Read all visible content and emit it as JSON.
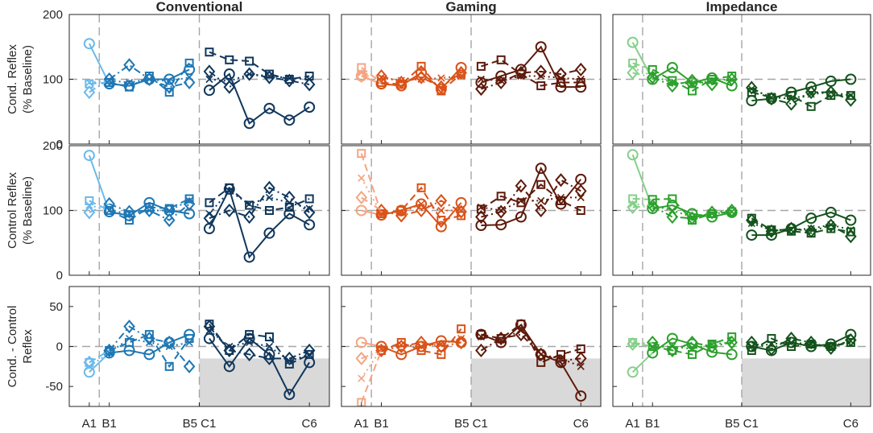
{
  "chart_data": {
    "type": "line",
    "columns": [
      {
        "title": "Conventional",
        "colors": {
          "A": "#6bb9ea",
          "B": "#1f77b4",
          "C": "#10375c"
        }
      },
      {
        "title": "Gaming",
        "colors": {
          "A": "#f4a582",
          "B": "#d95319",
          "C": "#5e1a0b"
        }
      },
      {
        "title": "Impedance",
        "colors": {
          "A": "#86d08a",
          "B": "#2ca02c",
          "C": "#14521c"
        }
      }
    ],
    "x_tick_labels": [
      {
        "label": "A1",
        "x": 1
      },
      {
        "label": "B1",
        "x": 2
      },
      {
        "label": "B5 C1",
        "x": 6.5
      },
      {
        "label": "C6",
        "x": 12
      }
    ],
    "x_range": [
      0,
      13
    ],
    "phase_separators": [
      1.5,
      6.5
    ],
    "rows": [
      {
        "ylabel": [
          "Cond. Reflex",
          "(% Baseline)"
        ],
        "ylim": [
          0,
          200
        ],
        "yticks": [
          0,
          100,
          200
        ],
        "reference": 100,
        "series": [
          [
            {
              "circle": [
                155,
                93,
                90,
                100,
                100,
                115,
                83,
                108,
                32,
                55,
                37,
                57
              ],
              "square": [
                93,
                95,
                88,
                105,
                80,
                125,
                142,
                130,
                128,
                108,
                100,
                105
              ],
              "diamond": [
                80,
                100,
                122,
                100,
                88,
                95,
                112,
                88,
                108,
                103,
                98,
                92
              ],
              "star": [
                95,
                98,
                95,
                100,
                97,
                103,
                100,
                97,
                108,
                105,
                102,
                100
              ]
            },
            {
              "circle": [
                105,
                93,
                90,
                110,
                85,
                118,
                95,
                105,
                115,
                150,
                88,
                88
              ],
              "square": [
                118,
                95,
                92,
                120,
                82,
                108,
                120,
                130,
                108,
                90,
                95,
                95
              ],
              "diamond": [
                105,
                105,
                95,
                103,
                88,
                110,
                85,
                95,
                110,
                112,
                108,
                115
              ],
              "star": [
                110,
                103,
                98,
                100,
                102,
                105,
                100,
                98,
                105,
                105,
                102,
                100
              ]
            },
            {
              "circle": [
                157,
                100,
                118,
                95,
                102,
                90,
                67,
                70,
                80,
                88,
                97,
                100
              ],
              "square": [
                125,
                115,
                98,
                82,
                100,
                105,
                80,
                72,
                75,
                58,
                75,
                75
              ],
              "diamond": [
                110,
                103,
                90,
                98,
                92,
                100,
                87,
                70,
                62,
                80,
                80,
                68
              ],
              "star": [
                118,
                105,
                95,
                93,
                98,
                100,
                85,
                72,
                70,
                77,
                80,
                75
              ]
            }
          ],
          [
            {
              "circle": [
                185,
                98,
                92,
                112,
                100,
                95,
                72,
                133,
                28,
                65,
                95,
                78
              ],
              "square": [
                115,
                100,
                85,
                105,
                103,
                118,
                112,
                135,
                108,
                100,
                105,
                118
              ],
              "diamond": [
                97,
                110,
                98,
                100,
                85,
                110,
                88,
                100,
                90,
                135,
                120,
                97
              ],
              "star": [
                108,
                100,
                95,
                100,
                100,
                115,
                95,
                130,
                110,
                120,
                112,
                103
              ]
            },
            {
              "circle": [
                100,
                93,
                100,
                110,
                75,
                112,
                77,
                78,
                90,
                165,
                110,
                148
              ],
              "square": [
                188,
                95,
                100,
                135,
                85,
                92,
                102,
                122,
                112,
                140,
                115,
                100
              ],
              "diamond": [
                120,
                100,
                92,
                100,
                115,
                98,
                90,
                98,
                138,
                100,
                147,
                130
              ],
              "star": [
                150,
                95,
                97,
                110,
                100,
                100,
                105,
                100,
                115,
                115,
                120,
                120
              ]
            },
            {
              "circle": [
                186,
                103,
                108,
                95,
                90,
                97,
                62,
                62,
                72,
                88,
                97,
                85
              ],
              "square": [
                118,
                117,
                118,
                85,
                95,
                98,
                88,
                70,
                68,
                65,
                72,
                67
              ],
              "diamond": [
                105,
                107,
                90,
                88,
                97,
                100,
                85,
                68,
                72,
                68,
                77,
                60
              ],
              "star": [
                110,
                108,
                100,
                90,
                95,
                98,
                80,
                70,
                70,
                72,
                78,
                70
              ]
            }
          ],
          [
            {
              "circle": [
                -32,
                -8,
                -5,
                -10,
                5,
                15,
                10,
                -25,
                10,
                -10,
                -60,
                -20
              ],
              "square": [
                -20,
                -5,
                5,
                15,
                -25,
                10,
                28,
                -5,
                15,
                12,
                -22,
                -10
              ],
              "diamond": [
                -20,
                -5,
                25,
                10,
                5,
                -25,
                25,
                -5,
                -10,
                -15,
                -15,
                -5
              ],
              "star": [
                -25,
                -8,
                10,
                5,
                0,
                5,
                20,
                0,
                5,
                0,
                -18,
                -10
              ]
            },
            {
              "circle": [
                5,
                0,
                -10,
                0,
                7,
                5,
                15,
                5,
                27,
                -10,
                -20,
                -62
              ],
              "square": [
                -70,
                -5,
                5,
                -5,
                -10,
                22,
                15,
                10,
                28,
                -20,
                -10,
                -3
              ],
              "diamond": [
                -15,
                -5,
                0,
                5,
                0,
                5,
                -5,
                10,
                15,
                -10,
                -18,
                -15
              ],
              "star": [
                -40,
                -3,
                2,
                0,
                3,
                10,
                12,
                8,
                20,
                -10,
                -15,
                -25
              ]
            },
            {
              "circle": [
                -32,
                -8,
                10,
                3,
                -7,
                -10,
                0,
                -5,
                5,
                0,
                3,
                15
              ],
              "square": [
                5,
                0,
                -5,
                -10,
                3,
                12,
                -5,
                10,
                0,
                3,
                0,
                5
              ],
              "diamond": [
                3,
                5,
                -5,
                5,
                0,
                5,
                5,
                -3,
                10,
                5,
                -2,
                8
              ],
              "star": [
                3,
                0,
                0,
                -3,
                3,
                5,
                0,
                3,
                5,
                3,
                0,
                7
              ]
            }
          ]
        ]
      },
      {
        "ylabel": [
          "Control Reflex",
          "(% Baseline)"
        ],
        "ylim": [
          0,
          200
        ],
        "yticks": [
          0,
          100,
          200
        ],
        "reference": 100
      },
      {
        "ylabel": [
          "Cond. - Control",
          "Reflex"
        ],
        "ylim": [
          -75,
          75
        ],
        "yticks": [
          -50,
          0,
          50
        ],
        "reference": 0,
        "shaded_region": {
          "x": [
            6.5,
            13
          ],
          "y": [
            -75,
            -15
          ]
        }
      }
    ],
    "markers": [
      "circle",
      "square",
      "diamond",
      "star"
    ],
    "line_styles": {
      "circle": "solid",
      "square": "dashed",
      "diamond": "dash-dot",
      "star": "dotted"
    }
  }
}
